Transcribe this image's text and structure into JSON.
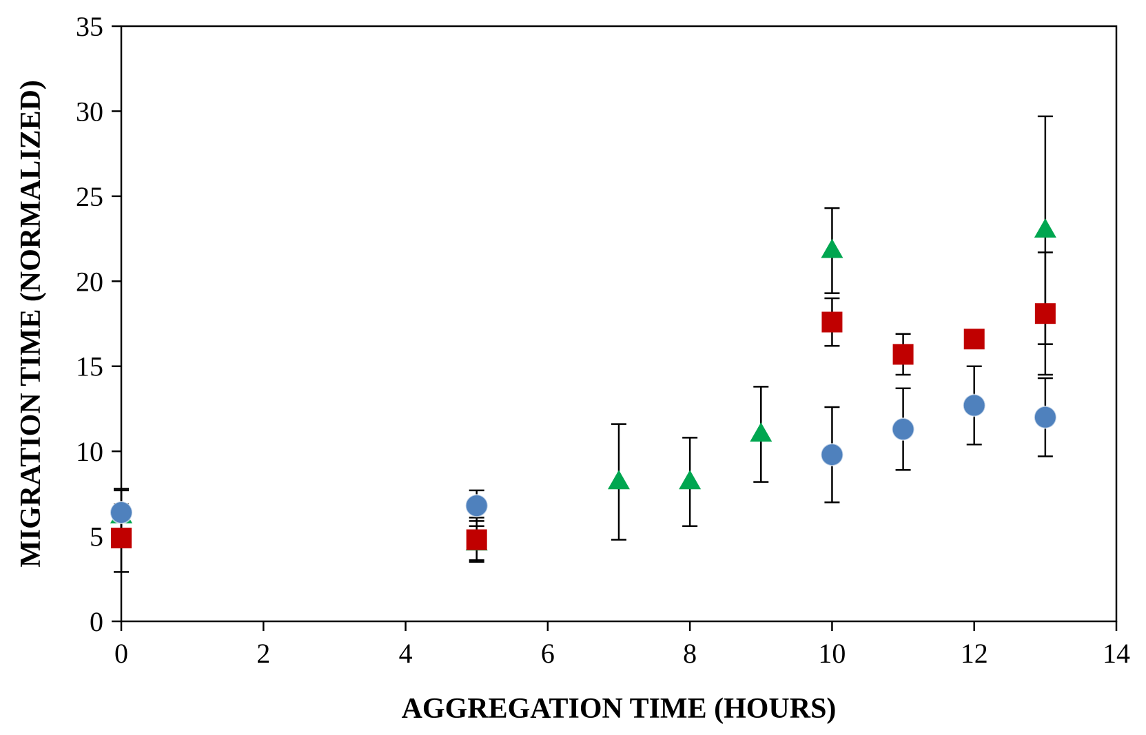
{
  "chart_data": {
    "type": "scatter",
    "title": "",
    "xlabel": "AGGREGATION TIME (HOURS)",
    "ylabel": "MIGRATION TIME (NORMALIZED)",
    "xlim": [
      0,
      14
    ],
    "ylim": [
      0,
      35
    ],
    "x_ticks": [
      "0",
      "2",
      "4",
      "6",
      "8",
      "10",
      "12",
      "14"
    ],
    "y_ticks": [
      "0",
      "5",
      "10",
      "15",
      "20",
      "25",
      "30",
      "35"
    ],
    "grid": false,
    "legend": "none",
    "series": [
      {
        "marker": "circle",
        "color": "#4f81bd",
        "points": [
          {
            "x": 0,
            "y": 6.4,
            "err": 1.3
          },
          {
            "x": 5,
            "y": 6.8,
            "err": 0.9
          },
          {
            "x": 10,
            "y": 9.8,
            "err": 2.8
          },
          {
            "x": 11,
            "y": 11.3,
            "err": 2.4
          },
          {
            "x": 12,
            "y": 12.7,
            "err": 2.3
          },
          {
            "x": 13,
            "y": 12.0,
            "err": 2.3
          }
        ]
      },
      {
        "marker": "square",
        "color": "#c00000",
        "points": [
          {
            "x": 0,
            "y": 4.9,
            "err": 2.0
          },
          {
            "x": 5,
            "y": 4.8,
            "err": 1.3
          },
          {
            "x": 10,
            "y": 17.6,
            "err": 1.4
          },
          {
            "x": 11,
            "y": 15.7,
            "err": 1.2
          },
          {
            "x": 12,
            "y": 16.6,
            "err": 0
          },
          {
            "x": 13,
            "y": 18.1,
            "err": 3.6
          }
        ]
      },
      {
        "marker": "triangle",
        "color": "#00a650",
        "points": [
          {
            "x": 0,
            "y": 6.2,
            "err": 1.6
          },
          {
            "x": 5,
            "y": 4.6,
            "err": 1.0
          },
          {
            "x": 7,
            "y": 8.2,
            "err": 3.4
          },
          {
            "x": 8,
            "y": 8.2,
            "err": 2.6
          },
          {
            "x": 9,
            "y": 11.0,
            "err": 2.8
          },
          {
            "x": 10,
            "y": 21.8,
            "err": 2.5
          },
          {
            "x": 13,
            "y": 23.0,
            "err": 6.7
          }
        ]
      }
    ]
  }
}
